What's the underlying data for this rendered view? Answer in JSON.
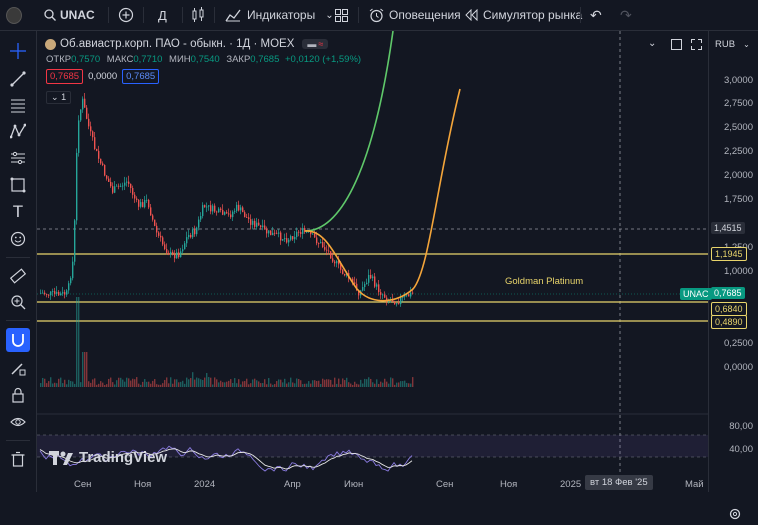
{
  "topbar": {
    "symbol": "UNAC",
    "interval": "Д",
    "indicators": "Индикаторы",
    "alerts": "Оповещения",
    "simulator": "Симулятор рынка"
  },
  "legend": {
    "title": "Об.авиастр.корп. ПАО - обыкн. · 1Д · MOEX",
    "open_label": "ОТКР",
    "open": "0,7570",
    "high_label": "МАКС",
    "high": "0,7710",
    "low_label": "МИН",
    "low": "0,7540",
    "close_label": "ЗАКР",
    "close": "0,7685",
    "change": "+0,0120 (+1,59%)",
    "bid": "0,7685",
    "spread": "0,0000",
    "ask": "0,7685",
    "collapse": "1"
  },
  "scale": {
    "currency": "RUB",
    "ticks": [
      "3,0000",
      "2,7500",
      "2,5000",
      "2,2500",
      "2,0000",
      "1,7500",
      "1,2500",
      "1,0000",
      "0,2500",
      "0,0000"
    ],
    "crosshair_price": "1,4515",
    "line_upper": "1,1945",
    "symbol_tag": "UNAC",
    "last_price": "0,7685",
    "line_mid": "0,6840",
    "line_low": "0,4890",
    "osc_ticks": [
      "80,00",
      "40,00"
    ]
  },
  "annotation": "Goldman Platinum",
  "watermark": "TradingView",
  "xaxis": {
    "labels": [
      "Сен",
      "Ноя",
      "2024",
      "Апр",
      "Июн",
      "Сен",
      "Ноя",
      "2025",
      "Май"
    ],
    "crosshair_date": "вт 18 Фев '25"
  },
  "colors": {
    "background": "#131722",
    "hline": "#e8d46b",
    "green_curve": "#5fc86a",
    "orange_curve": "#f4a53a",
    "last_price": "#089981"
  }
}
